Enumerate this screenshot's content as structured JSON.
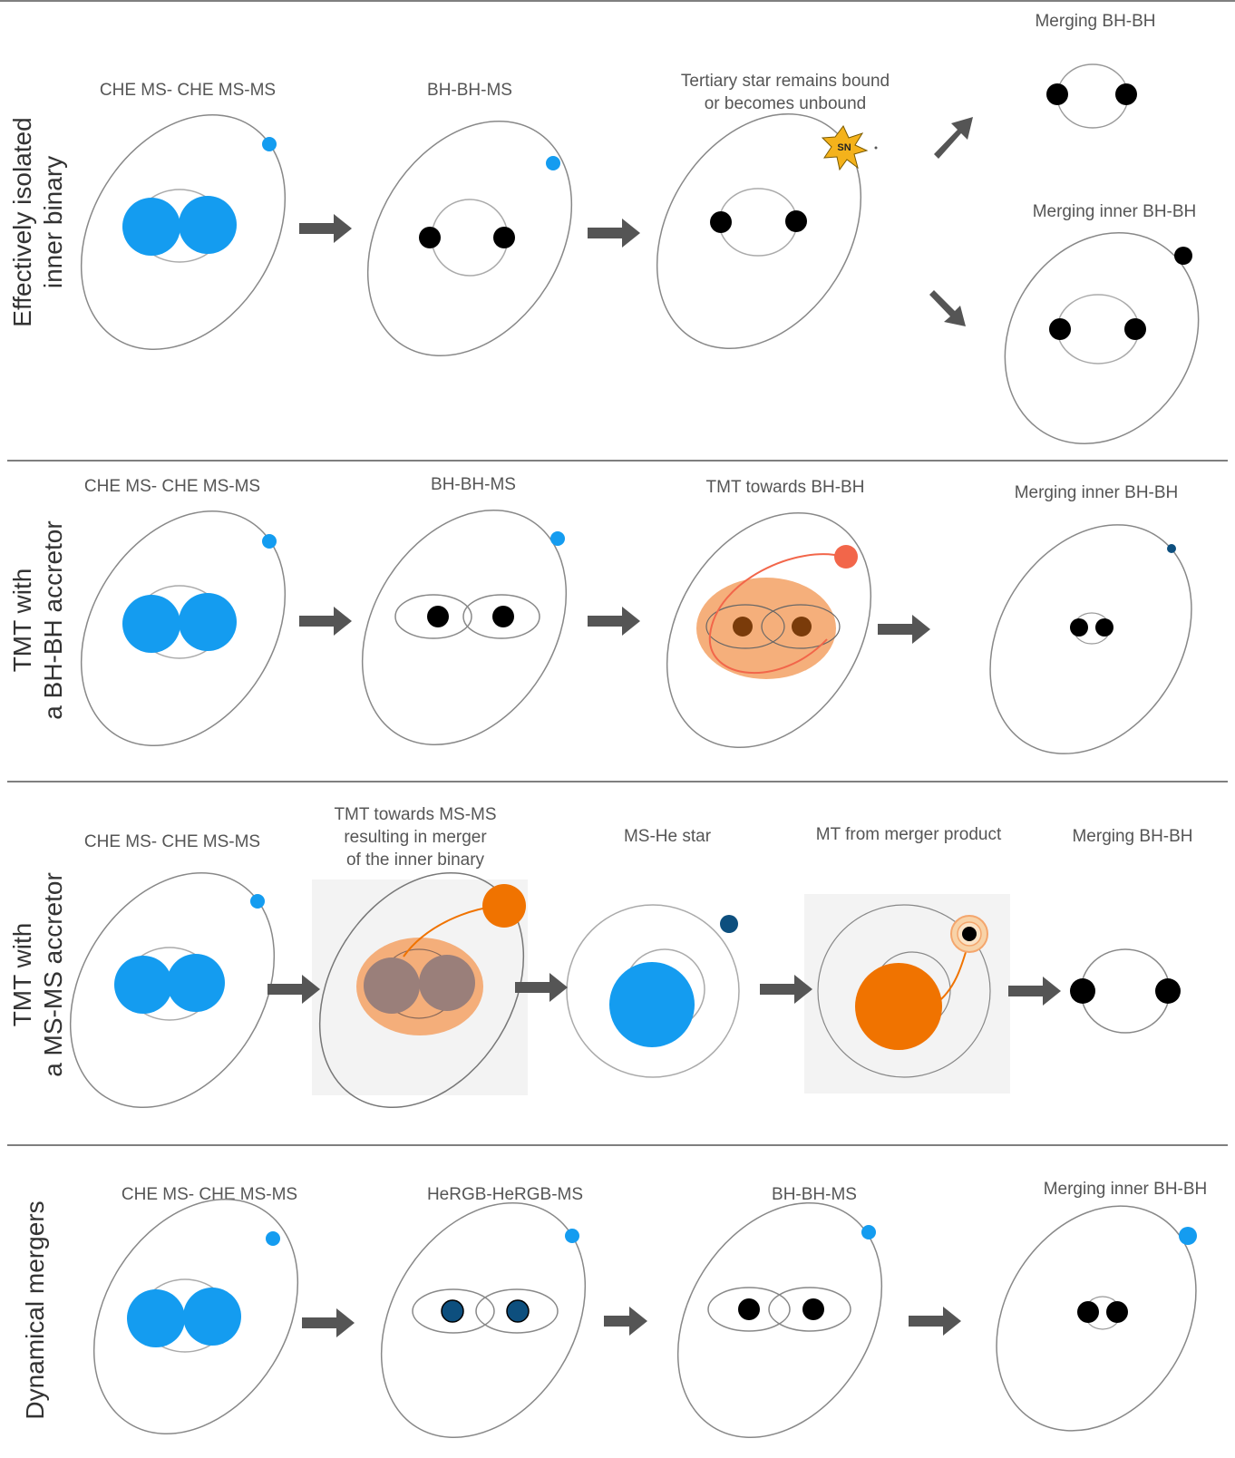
{
  "colors": {
    "ms_star": "#149cf0",
    "bh": "#000000",
    "dark_star": "#0d4f7e",
    "orange": "#f07300",
    "envelope": "#f4a66d",
    "donor_red": "#f2664a",
    "arrow": "#555555",
    "orbit": "#888888"
  },
  "rows": [
    {
      "title_line1": "Effectively isolated",
      "title_line2": "inner binary",
      "stages": [
        "CHE MS- CHE MS-MS",
        "BH-BH-MS",
        "Tertiary star remains bound",
        "or becomes unbound",
        "Merging BH-BH",
        "Merging inner BH-BH"
      ],
      "sn_label": "SN"
    },
    {
      "title_line1": "TMT with",
      "title_line2": "a BH-BH accretor",
      "stages": [
        "CHE MS- CHE MS-MS",
        "BH-BH-MS",
        "TMT towards BH-BH",
        "Merging inner BH-BH"
      ]
    },
    {
      "title_line1": "TMT with",
      "title_line2": "a  MS-MS accretor",
      "stages": [
        "CHE MS- CHE MS-MS",
        "TMT towards MS-MS",
        "resulting in merger",
        "of the inner binary",
        "MS-He star",
        "MT from merger product",
        "Merging BH-BH"
      ]
    },
    {
      "title_line1": "Dynamical mergers",
      "stages": [
        "CHE MS- CHE MS-MS",
        "HeRGB-HeRGB-MS",
        "BH-BH-MS",
        "Merging inner BH-BH"
      ]
    }
  ]
}
